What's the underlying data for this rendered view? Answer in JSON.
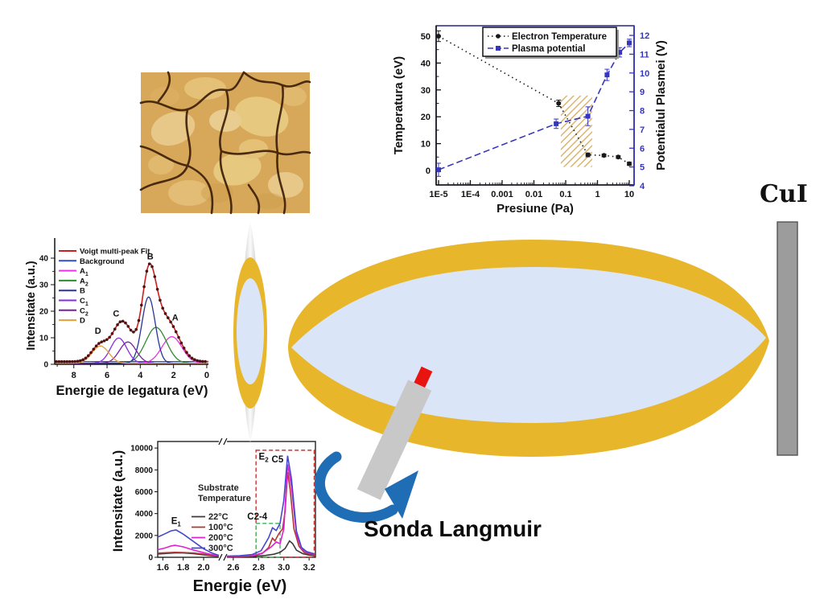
{
  "scene": {
    "cui_label": "CuI",
    "probe_label": "Sonda Langmuir",
    "colors": {
      "plume_yellow": "#e8b62b",
      "plume_blue": "#dbe5f8",
      "target_gray": "#9c9c9c",
      "probe_gray": "#c8c8c8",
      "probe_tip": "#e81410",
      "arrow_blue": "#1e6db5"
    }
  },
  "afm": {
    "description": "AFM-like surface morphology image with tan grains and dark grain-boundary cracks",
    "base": "#d8a85a",
    "grain_light": "#ecd095",
    "grain_mid": "#e3bd74",
    "crack": "#3a1d06"
  },
  "chart_data": [
    {
      "id": "plasma-parameters",
      "type": "scatter",
      "x_scale": "log",
      "xlabel": "Presiune (Pa)",
      "x_ticks": [
        {
          "v": 1e-05,
          "label": "1E-5"
        },
        {
          "v": 0.0001,
          "label": "1E-4"
        },
        {
          "v": 0.001,
          "label": "0.001"
        },
        {
          "v": 0.01,
          "label": "0.01"
        },
        {
          "v": 0.1,
          "label": "0.1"
        },
        {
          "v": 1,
          "label": "1"
        },
        {
          "v": 10,
          "label": "10"
        }
      ],
      "left_axis": {
        "label": "Temperatura (eV)",
        "ticks": [
          0,
          10,
          20,
          30,
          40,
          50
        ],
        "color": "#111111"
      },
      "right_axis": {
        "label": "Potentialul Plasmei (V)",
        "ticks": [
          4,
          5,
          6,
          7,
          8,
          9,
          10,
          11,
          12
        ],
        "color": "#3535bd"
      },
      "legend": [
        "Electron Temperature",
        "Plasma potential"
      ],
      "series": [
        {
          "name": "Electron Temperature",
          "axis": "left",
          "color": "#1a1a1a",
          "line": "dotted",
          "marker": "circle",
          "points": [
            [
              1e-05,
              50
            ],
            [
              0.06,
              25
            ],
            [
              0.5,
              5.8
            ],
            [
              1.6,
              5.6
            ],
            [
              4.5,
              5.0
            ],
            [
              10,
              2.5
            ]
          ],
          "yerr": [
            2.0,
            1.2,
            0.7,
            0.5,
            0.5,
            0.6
          ]
        },
        {
          "name": "Plasma potential",
          "axis": "right",
          "color": "#3535bd",
          "line": "dashed",
          "marker": "square",
          "points": [
            [
              1e-05,
              4.85
            ],
            [
              0.05,
              7.3
            ],
            [
              0.5,
              7.7
            ],
            [
              2,
              9.9
            ],
            [
              5,
              11.1
            ],
            [
              10,
              11.6
            ]
          ],
          "yerr": [
            0.35,
            0.25,
            0.5,
            0.3,
            0.25,
            0.2
          ]
        }
      ],
      "highlight_box": {
        "x0": 0.07,
        "x1": 0.68,
        "y0_right": 5.0,
        "y1_right": 8.8,
        "color": "#d2a24c"
      }
    },
    {
      "id": "xps-spectrum",
      "type": "line",
      "xlabel": "Energie de legatura (eV)",
      "ylabel": "Intensitate (a.u.)",
      "x_ticks": [
        8,
        6,
        4,
        2,
        0
      ],
      "y_ticks": [
        0,
        10,
        20,
        30,
        40
      ],
      "x_reversed": true,
      "background_level": 1.0,
      "fit_color": "#cc2020",
      "marker_color": "#4a1212",
      "background_color": "#3050c8",
      "legend": [
        {
          "base": "Voigt multi-peak Fit",
          "color": "#cc2020"
        },
        {
          "base": "Background",
          "color": "#3050c8"
        },
        {
          "base": "A",
          "sub": "1",
          "color": "#e833e8"
        },
        {
          "base": "A",
          "sub": "2",
          "color": "#2e8b2e"
        },
        {
          "base": "B",
          "color": "#283593"
        },
        {
          "base": "C",
          "sub": "1",
          "color": "#8a2be2"
        },
        {
          "base": "C",
          "sub": "2",
          "color": "#7a1fa2"
        },
        {
          "base": "D",
          "color": "#e0a040"
        }
      ],
      "components": [
        {
          "name": "A1",
          "color": "#e833e8",
          "center": 2.1,
          "sigma": 0.6,
          "amp": 10
        },
        {
          "name": "A2",
          "color": "#2e8b2e",
          "center": 3.05,
          "sigma": 0.62,
          "amp": 13.5
        },
        {
          "name": "B",
          "color": "#283593",
          "center": 3.5,
          "sigma": 0.4,
          "amp": 25
        },
        {
          "name": "C1",
          "color": "#8a2be2",
          "center": 5.3,
          "sigma": 0.48,
          "amp": 9.5
        },
        {
          "name": "C2",
          "color": "#7a1fa2",
          "center": 4.75,
          "sigma": 0.5,
          "amp": 8
        },
        {
          "name": "D",
          "color": "#e0a040",
          "center": 6.4,
          "sigma": 0.5,
          "amp": 6.5
        }
      ],
      "peak_labels": [
        {
          "text": "B",
          "x": 3.4,
          "y": 39.5
        },
        {
          "text": "C",
          "x": 5.45,
          "y": 18.0
        },
        {
          "text": "A",
          "x": 1.9,
          "y": 16.5
        },
        {
          "text": "D",
          "x": 6.55,
          "y": 11.5
        }
      ]
    },
    {
      "id": "pl-spectrum",
      "type": "line",
      "xlabel": "Energie (eV)",
      "ylabel": "Intensitate (a.u.)",
      "axis_break": {
        "left_domain": [
          1.55,
          2.15
        ],
        "right_domain": [
          2.55,
          3.25
        ],
        "left_frac": [
          0,
          0.388
        ],
        "right_frac": [
          0.439,
          1.0
        ]
      },
      "x_ticks": [
        {
          "v": 1.6,
          "label": "1.6"
        },
        {
          "v": 1.8,
          "label": "1.8"
        },
        {
          "v": 2.0,
          "label": "2.0"
        },
        {
          "v": 2.6,
          "label": "2.6"
        },
        {
          "v": 2.8,
          "label": "2.8"
        },
        {
          "v": 3.0,
          "label": "3.0"
        },
        {
          "v": 3.2,
          "label": "3.2"
        }
      ],
      "y_ticks": [
        0,
        2000,
        4000,
        6000,
        8000,
        10000
      ],
      "ylim": [
        0,
        10600
      ],
      "legend_title": [
        "Substrate",
        "Temperature"
      ],
      "series": [
        {
          "name": "22°C",
          "color": "#3a3a3a",
          "points": [
            [
              1.55,
              300
            ],
            [
              1.65,
              360
            ],
            [
              1.72,
              400
            ],
            [
              1.8,
              400
            ],
            [
              1.9,
              340
            ],
            [
              2.0,
              230
            ],
            [
              2.08,
              140
            ],
            [
              2.15,
              80
            ],
            [
              2.55,
              45
            ],
            [
              2.65,
              50
            ],
            [
              2.75,
              80
            ],
            [
              2.85,
              160
            ],
            [
              2.92,
              280
            ],
            [
              2.97,
              450
            ],
            [
              3.01,
              800
            ],
            [
              3.045,
              1500
            ],
            [
              3.07,
              1250
            ],
            [
              3.1,
              650
            ],
            [
              3.15,
              330
            ],
            [
              3.2,
              200
            ],
            [
              3.24,
              150
            ]
          ]
        },
        {
          "name": "100°C",
          "color": "#b23535",
          "points": [
            [
              1.55,
              380
            ],
            [
              1.65,
              430
            ],
            [
              1.72,
              460
            ],
            [
              1.8,
              440
            ],
            [
              1.9,
              390
            ],
            [
              2.0,
              290
            ],
            [
              2.08,
              170
            ],
            [
              2.15,
              90
            ],
            [
              2.55,
              60
            ],
            [
              2.65,
              70
            ],
            [
              2.75,
              120
            ],
            [
              2.83,
              350
            ],
            [
              2.88,
              900
            ],
            [
              2.91,
              1750
            ],
            [
              2.93,
              1500
            ],
            [
              2.96,
              2150
            ],
            [
              2.99,
              2600
            ],
            [
              3.01,
              4200
            ],
            [
              3.03,
              7800
            ],
            [
              3.05,
              6200
            ],
            [
              3.08,
              2600
            ],
            [
              3.12,
              1000
            ],
            [
              3.16,
              450
            ],
            [
              3.2,
              280
            ],
            [
              3.24,
              220
            ]
          ]
        },
        {
          "name": "200°C",
          "color": "#e020d0",
          "points": [
            [
              1.55,
              700
            ],
            [
              1.62,
              850
            ],
            [
              1.68,
              1040
            ],
            [
              1.72,
              1100
            ],
            [
              1.8,
              960
            ],
            [
              1.9,
              660
            ],
            [
              2.0,
              430
            ],
            [
              2.08,
              250
            ],
            [
              2.15,
              130
            ],
            [
              2.55,
              85
            ],
            [
              2.65,
              100
            ],
            [
              2.75,
              160
            ],
            [
              2.83,
              380
            ],
            [
              2.9,
              950
            ],
            [
              2.94,
              1400
            ],
            [
              2.97,
              1250
            ],
            [
              3.0,
              2600
            ],
            [
              3.03,
              8500
            ],
            [
              3.06,
              6500
            ],
            [
              3.1,
              2100
            ],
            [
              3.14,
              800
            ],
            [
              3.18,
              450
            ],
            [
              3.22,
              330
            ],
            [
              3.24,
              300
            ]
          ]
        },
        {
          "name": "300°C",
          "color": "#4848cc",
          "points": [
            [
              1.55,
              1850
            ],
            [
              1.62,
              2150
            ],
            [
              1.68,
              2420
            ],
            [
              1.73,
              2500
            ],
            [
              1.8,
              2120
            ],
            [
              1.9,
              1450
            ],
            [
              2.0,
              780
            ],
            [
              2.08,
              400
            ],
            [
              2.15,
              180
            ],
            [
              2.55,
              110
            ],
            [
              2.65,
              140
            ],
            [
              2.75,
              260
            ],
            [
              2.82,
              600
            ],
            [
              2.88,
              1800
            ],
            [
              2.91,
              2700
            ],
            [
              2.94,
              2450
            ],
            [
              2.97,
              3100
            ],
            [
              3.0,
              5200
            ],
            [
              3.03,
              9300
            ],
            [
              3.06,
              7200
            ],
            [
              3.1,
              2400
            ],
            [
              3.14,
              900
            ],
            [
              3.18,
              520
            ],
            [
              3.22,
              380
            ],
            [
              3.24,
              340
            ]
          ]
        }
      ],
      "boxes": [
        {
          "x0": 2.78,
          "x1": 3.24,
          "y0": 0,
          "y1": 9800,
          "color": "#cc3333"
        },
        {
          "x0": 2.78,
          "x1": 2.97,
          "y0": 0,
          "y1": 3100,
          "color": "#44bb66"
        }
      ],
      "annotations": [
        {
          "base": "E",
          "sub": "1",
          "x": 1.73,
          "y": 3050
        },
        {
          "base": "E",
          "sub": "2",
          "x": 2.84,
          "y": 8950
        },
        {
          "base": "C5",
          "x": 2.95,
          "y": 8700
        },
        {
          "base": "C2-4",
          "x": 2.79,
          "y": 3450
        }
      ]
    }
  ]
}
